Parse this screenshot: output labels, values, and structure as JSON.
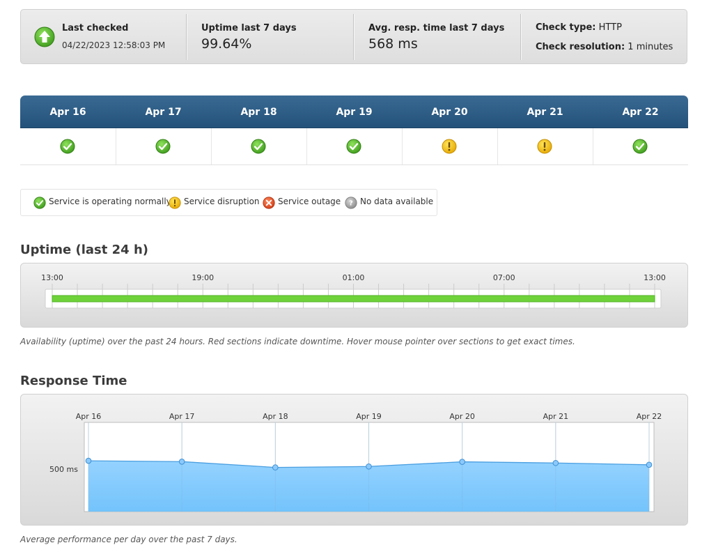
{
  "summary": {
    "last_checked_label": "Last checked",
    "last_checked_value": "04/22/2023 12:58:03 PM",
    "uptime_label": "Uptime last 7 days",
    "uptime_value": "99.64%",
    "avg_resp_label": "Avg. resp. time last 7 days",
    "avg_resp_value": "568 ms",
    "check_type_label": "Check type:",
    "check_type_value": "HTTP",
    "check_resolution_label": "Check resolution:",
    "check_resolution_value": "1 minutes"
  },
  "week": {
    "days": [
      {
        "label": "Apr 16",
        "status": "normal"
      },
      {
        "label": "Apr 17",
        "status": "normal"
      },
      {
        "label": "Apr 18",
        "status": "normal"
      },
      {
        "label": "Apr 19",
        "status": "normal"
      },
      {
        "label": "Apr 20",
        "status": "disruption"
      },
      {
        "label": "Apr 21",
        "status": "disruption"
      },
      {
        "label": "Apr 22",
        "status": "normal"
      }
    ]
  },
  "legend": {
    "normal": "Service is operating normally",
    "disruption": "Service disruption",
    "outage": "Service outage",
    "nodata": "No data available"
  },
  "colors": {
    "normal": "#4fae2c",
    "disruption": "#f2c200",
    "outage": "#e0502a",
    "nodata": "#9a9a9a",
    "uptime_bar": "#6fd23a",
    "area_fill": "#6cc0fb",
    "header_blue": "#2c5c86"
  },
  "uptime": {
    "title": "Uptime (last 24 h)",
    "caption": "Availability (uptime) over the past 24 hours. Red sections indicate downtime. Hover mouse pointer over sections to get exact times.",
    "ticks": [
      "13:00",
      "19:00",
      "01:00",
      "07:00",
      "13:00"
    ],
    "up_fraction": 1.0
  },
  "response": {
    "title": "Response Time",
    "caption": "Average performance per day over the past 7 days."
  },
  "chart_data": {
    "type": "area",
    "categories": [
      "Apr 16",
      "Apr 17",
      "Apr 18",
      "Apr 19",
      "Apr 20",
      "Apr 21",
      "Apr 22"
    ],
    "series": [
      {
        "values": [
          598,
          588,
          520,
          531,
          586,
          572,
          551
        ]
      }
    ],
    "ytick_values": [
      500
    ],
    "ytick_labels": [
      "500 ms"
    ],
    "ylim": [
      0,
      1050
    ],
    "grid": true,
    "legend": "none"
  }
}
